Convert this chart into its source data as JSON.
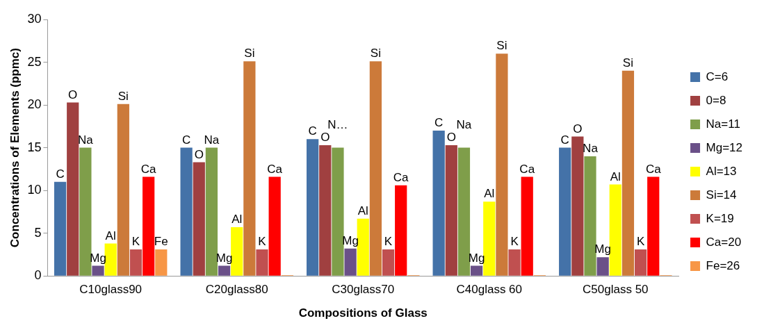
{
  "chart_data": {
    "type": "bar",
    "xlabel": "Compositions of Glass",
    "ylabel": "Concentrations of Elements (ppmc)",
    "categories": [
      "C10glass90",
      "C20glass80",
      "C30glass70",
      "C40glass 60",
      "C50glass 50"
    ],
    "ylim": [
      0,
      30
    ],
    "yticks": [
      0,
      5,
      10,
      15,
      20,
      25,
      30
    ],
    "grid": false,
    "legend": "right",
    "series": [
      {
        "name": "C=6",
        "color": "#4472a8",
        "values": [
          11,
          15,
          16,
          17,
          15
        ],
        "value_labels": [
          "C",
          "C",
          "C",
          "C",
          "C"
        ]
      },
      {
        "name": "0=8",
        "color": "#a04040",
        "values": [
          20.3,
          13.3,
          15.3,
          15.3,
          16.3
        ],
        "value_labels": [
          "O",
          "O",
          "O",
          "O",
          "O"
        ]
      },
      {
        "name": "Na=11",
        "color": "#7f9e4a",
        "values": [
          15,
          15,
          15,
          15,
          14
        ],
        "value_labels": [
          "Na",
          "Na",
          "N…",
          "Na",
          "Na"
        ]
      },
      {
        "name": "Mg=12",
        "color": "#6a5088",
        "values": [
          1.2,
          1.2,
          3.2,
          1.2,
          2.2
        ],
        "value_labels": [
          "Mg",
          "Mg",
          "Mg",
          "Mg",
          "Mg"
        ]
      },
      {
        "name": "Al=13",
        "color": "#ffff00",
        "values": [
          3.8,
          5.7,
          6.7,
          8.7,
          10.7
        ],
        "value_labels": [
          "Al",
          "Al",
          "Al",
          "Al",
          "Al"
        ]
      },
      {
        "name": "Si=14",
        "color": "#cc7a3a",
        "values": [
          20.1,
          25.1,
          25.1,
          26,
          24
        ],
        "value_labels": [
          "Si",
          "Si",
          "Si",
          "Si",
          "Si"
        ]
      },
      {
        "name": "K=19",
        "color": "#c05050",
        "values": [
          3.1,
          3.1,
          3.1,
          3.1,
          3.1
        ],
        "value_labels": [
          "K",
          "K",
          "K",
          "K",
          "K"
        ]
      },
      {
        "name": "Ca=20",
        "color": "#ff0000",
        "values": [
          11.6,
          11.6,
          10.6,
          11.6,
          11.6
        ],
        "value_labels": [
          "Ca",
          "Ca",
          "Ca",
          "Ca",
          "Ca"
        ]
      },
      {
        "name": "Fe=26",
        "color": "#f79646",
        "values": [
          3.1,
          0.1,
          0.1,
          0.1,
          0.1
        ],
        "value_labels": [
          "Fe",
          null,
          null,
          null,
          null
        ]
      }
    ]
  }
}
